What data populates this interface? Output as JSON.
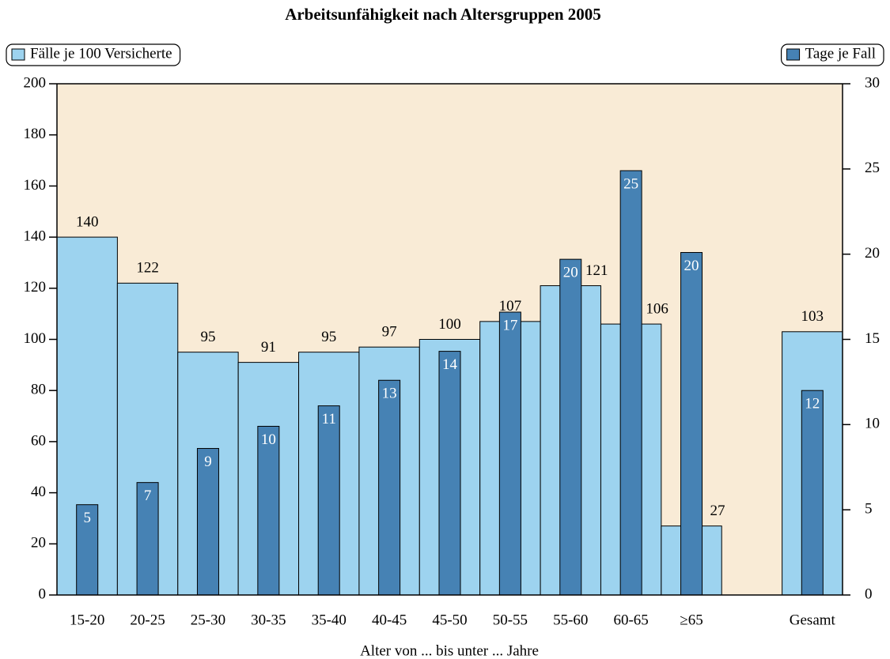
{
  "chart_data": {
    "type": "bar",
    "title": "Arbeitsunfähigkeit nach Altersgruppen 2005",
    "xlabel": "Alter von ... bis unter ... Jahre",
    "categories": [
      "15-20",
      "20-25",
      "25-30",
      "30-35",
      "35-40",
      "40-45",
      "45-50",
      "50-55",
      "55-60",
      "60-65",
      "≥65",
      null,
      "Gesamt"
    ],
    "series": [
      {
        "name": "Fälle je 100 Versicherte",
        "color": "#9dd3ef",
        "values": [
          140,
          122,
          95,
          91,
          95,
          97,
          100,
          107,
          121,
          106,
          27,
          null,
          103
        ]
      },
      {
        "name": "Tage je Fall",
        "color": "#4682b4",
        "axis": "y2",
        "values": [
          5.3,
          6.6,
          8.6,
          9.9,
          11.1,
          12.6,
          14.3,
          16.6,
          19.7,
          24.9,
          20.1,
          null,
          12.0
        ],
        "value_labels": [
          "5",
          "7",
          "9",
          "10",
          "11",
          "13",
          "14",
          "17",
          "20",
          "25",
          "20",
          null,
          "12"
        ]
      }
    ],
    "ylim": [
      0,
      200
    ],
    "yticks": [
      0,
      20,
      40,
      60,
      80,
      100,
      120,
      140,
      160,
      180,
      200
    ],
    "y2lim": [
      0,
      30
    ],
    "y2ticks": [
      0,
      5,
      10,
      15,
      20,
      25,
      30
    ],
    "plot_background": "#f9ebd6"
  }
}
